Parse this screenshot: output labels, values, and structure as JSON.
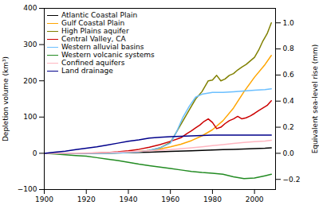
{
  "chart_data": {
    "type": "line",
    "ylabel": "Depletion volume (km³)",
    "y2label": "Equivalent sea-level rise (mm)",
    "xlim": [
      1900,
      2010
    ],
    "xticks": [
      1900,
      1920,
      1940,
      1960,
      1980,
      2000
    ],
    "ylim": [
      -100,
      400
    ],
    "yticks": [
      -100,
      0,
      100,
      200,
      300,
      400
    ],
    "y2lim": [
      -0.2778,
      1.1111
    ],
    "y2ticks": [
      -0.2,
      {
        "value": 0,
        "label": "0.0"
      },
      0.2,
      0.4,
      0.6,
      0.8,
      {
        "value": 1,
        "label": "1.0"
      }
    ],
    "legend": "upper left",
    "grid": false,
    "series": [
      {
        "name": "Atlantic Coastal Plain",
        "color": "#000000",
        "x": [
          1900,
          1910,
          1920,
          1930,
          1940,
          1950,
          1960,
          1970,
          1975,
          1980,
          1985,
          1990,
          1995,
          2000,
          2005,
          2008
        ],
        "values": [
          0,
          0,
          0,
          1,
          2,
          3,
          5,
          7,
          8,
          9,
          10,
          11,
          12,
          13,
          14,
          15
        ]
      },
      {
        "name": "Gulf Coastal Plain",
        "color": "#FFA500",
        "x": [
          1900,
          1910,
          1920,
          1930,
          1940,
          1945,
          1950,
          1955,
          1960,
          1965,
          1970,
          1975,
          1980,
          1985,
          1990,
          1995,
          2000,
          2005,
          2008
        ],
        "values": [
          0,
          0,
          0,
          1,
          3,
          5,
          8,
          12,
          18,
          25,
          35,
          48,
          65,
          90,
          125,
          170,
          210,
          245,
          270
        ]
      },
      {
        "name": "High Plains aquifer",
        "color": "#808000",
        "x": [
          1900,
          1910,
          1920,
          1930,
          1940,
          1945,
          1950,
          1955,
          1960,
          1963,
          1966,
          1969,
          1972,
          1975,
          1978,
          1980,
          1982,
          1984,
          1986,
          1988,
          1990,
          1992,
          1994,
          1996,
          1998,
          2000,
          2002,
          2004,
          2006,
          2008
        ],
        "values": [
          0,
          0,
          0,
          0,
          2,
          4,
          8,
          15,
          30,
          60,
          90,
          120,
          150,
          170,
          200,
          202,
          215,
          200,
          205,
          215,
          220,
          230,
          238,
          245,
          255,
          265,
          285,
          310,
          330,
          360
        ]
      },
      {
        "name": "Central Valley, CA",
        "color": "#CC0000",
        "x": [
          1900,
          1920,
          1930,
          1935,
          1940,
          1945,
          1950,
          1955,
          1960,
          1965,
          1968,
          1970,
          1972,
          1974,
          1976,
          1978,
          1980,
          1982,
          1984,
          1986,
          1988,
          1990,
          1992,
          1994,
          1996,
          1998,
          2000,
          2002,
          2004,
          2006,
          2008
        ],
        "values": [
          0,
          0,
          2,
          4,
          7,
          11,
          17,
          24,
          33,
          43,
          55,
          62,
          70,
          78,
          88,
          95,
          85,
          68,
          72,
          82,
          90,
          95,
          102,
          95,
          98,
          103,
          110,
          118,
          125,
          132,
          145
        ]
      },
      {
        "name": "Western alluvial basins",
        "color": "#6BBFFF",
        "x": [
          1900,
          1910,
          1920,
          1930,
          1940,
          1945,
          1950,
          1955,
          1960,
          1963,
          1966,
          1969,
          1972,
          1975,
          1980,
          1985,
          1990,
          1995,
          2000,
          2005,
          2008
        ],
        "values": [
          0,
          0,
          0,
          0,
          2,
          4,
          8,
          15,
          28,
          60,
          100,
          130,
          155,
          163,
          168,
          168,
          170,
          172,
          174,
          176,
          178
        ]
      },
      {
        "name": "Western volcanic systems",
        "color": "#228B22",
        "x": [
          1900,
          1905,
          1910,
          1915,
          1920,
          1925,
          1930,
          1935,
          1940,
          1945,
          1950,
          1955,
          1960,
          1965,
          1970,
          1975,
          1980,
          1985,
          1990,
          1995,
          2000,
          2005,
          2008
        ],
        "values": [
          0,
          -2,
          -4,
          -6,
          -8,
          -12,
          -16,
          -20,
          -25,
          -30,
          -34,
          -38,
          -42,
          -46,
          -50,
          -53,
          -55,
          -58,
          -65,
          -70,
          -68,
          -62,
          -58
        ]
      },
      {
        "name": "Confined aquifers",
        "color": "#FFB6C1",
        "x": [
          1900,
          1910,
          1920,
          1930,
          1940,
          1950,
          1960,
          1970,
          1975,
          1980,
          1985,
          1990,
          1995,
          2000,
          2005,
          2008
        ],
        "values": [
          0,
          0,
          1,
          2,
          4,
          7,
          10,
          15,
          18,
          21,
          24,
          27,
          30,
          32,
          34,
          36
        ]
      },
      {
        "name": "Land drainage",
        "color": "#00008B",
        "x": [
          1900,
          1905,
          1910,
          1915,
          1920,
          1925,
          1930,
          1935,
          1940,
          1945,
          1950,
          1955,
          1960,
          1965,
          1970,
          1975,
          1980,
          1985,
          1990,
          1995,
          2000,
          2005,
          2008
        ],
        "values": [
          0,
          3,
          6,
          10,
          14,
          18,
          23,
          28,
          33,
          37,
          42,
          44,
          46,
          47,
          48,
          49,
          50,
          50,
          50,
          50,
          50,
          50,
          50
        ]
      }
    ]
  }
}
